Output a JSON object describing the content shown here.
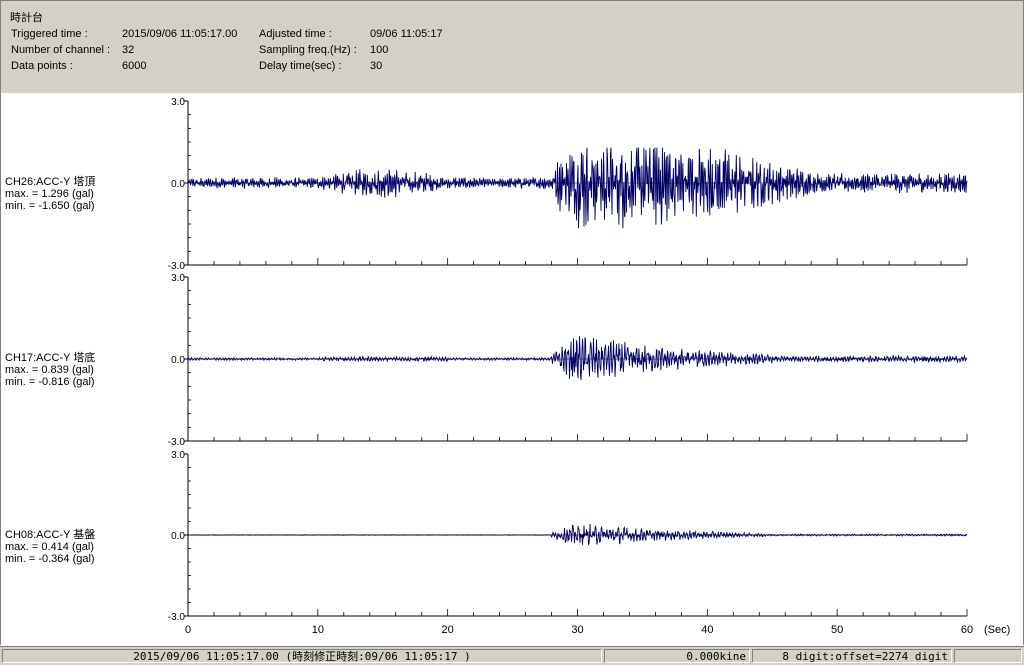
{
  "header": {
    "title": "時計台",
    "triggered_label": "Triggered time :",
    "triggered_value": "2015/09/06 11:05:17.00",
    "channels_label": "Number of channel :",
    "channels_value": "32",
    "points_label": "Data points :",
    "points_value": "6000",
    "adjusted_label": "Adjusted time :",
    "adjusted_value": "09/06 11:05:17",
    "sampling_label": "Sampling freq.(Hz) :",
    "sampling_value": "100",
    "delay_label": "Delay time(sec) :",
    "delay_value": "30"
  },
  "chart_data": {
    "type": "line",
    "xlabel": "(Sec)",
    "xlim": [
      0,
      60
    ],
    "x_ticks": [
      "0",
      "10",
      "20",
      "30",
      "40",
      "50",
      "60"
    ],
    "y_ticks": [
      "3.0",
      "0.0",
      "-3.0"
    ],
    "ylim": [
      -3.0,
      3.0
    ],
    "color": "#000066",
    "series": [
      {
        "name": "CH26:ACC-Y 塔頂",
        "max_text": "max. = 1.296 (gal)",
        "min_text": "min. = -1.650 (gal)",
        "max": 1.296,
        "min": -1.65
      },
      {
        "name": "CH17:ACC-Y 塔底",
        "max_text": "max. = 0.839 (gal)",
        "min_text": "min. = -0.816 (gal)",
        "max": 0.839,
        "min": -0.816
      },
      {
        "name": "CH08:ACC-Y 基盤",
        "max_text": "max. = 0.414 (gal)",
        "min_text": "min. = -0.364 (gal)",
        "max": 0.414,
        "min": -0.364
      }
    ]
  },
  "status": {
    "time": "2015/09/06 11:05:17.00  (時刻修正時刻:09/06 11:05:17  )",
    "kine": "0.000kine",
    "digit": "8 digit:offset=2274 digit"
  }
}
